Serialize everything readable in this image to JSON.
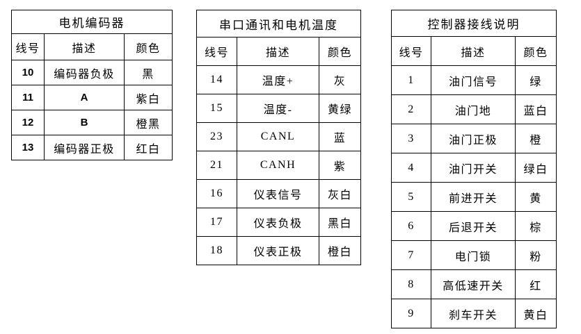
{
  "tables": [
    {
      "title": "电机编码器",
      "headers": [
        "线号",
        "描述",
        "颜色"
      ],
      "rows": [
        [
          "10",
          "编码器负极",
          "黑"
        ],
        [
          "11",
          "A",
          "紫白"
        ],
        [
          "12",
          "B",
          "橙黑"
        ],
        [
          "13",
          "编码器正极",
          "红白"
        ]
      ]
    },
    {
      "title": "串口通讯和电机温度",
      "headers": [
        "线号",
        "描述",
        "颜色"
      ],
      "rows": [
        [
          "14",
          "温度+",
          "灰"
        ],
        [
          "15",
          "温度-",
          "黄绿"
        ],
        [
          "23",
          "CANL",
          "蓝"
        ],
        [
          "21",
          "CANH",
          "紫"
        ],
        [
          "16",
          "仪表信号",
          "灰白"
        ],
        [
          "17",
          "仪表负极",
          "黑白"
        ],
        [
          "18",
          "仪表正极",
          "橙白"
        ]
      ]
    },
    {
      "title": "控制器接线说明",
      "headers": [
        "线号",
        "描述",
        "颜色"
      ],
      "rows": [
        [
          "1",
          "油门信号",
          "绿"
        ],
        [
          "2",
          "油门地",
          "蓝白"
        ],
        [
          "3",
          "油门正极",
          "橙"
        ],
        [
          "4",
          "油门开关",
          "绿白"
        ],
        [
          "5",
          "前进开关",
          "黄"
        ],
        [
          "6",
          "后退开关",
          "棕"
        ],
        [
          "7",
          "电门锁",
          "粉"
        ],
        [
          "8",
          "高低速开关",
          "红"
        ],
        [
          "9",
          "刹车开关",
          "黄白"
        ]
      ]
    }
  ],
  "colors": {
    "border": "#000000",
    "text": "#000000",
    "background": "#ffffff"
  }
}
